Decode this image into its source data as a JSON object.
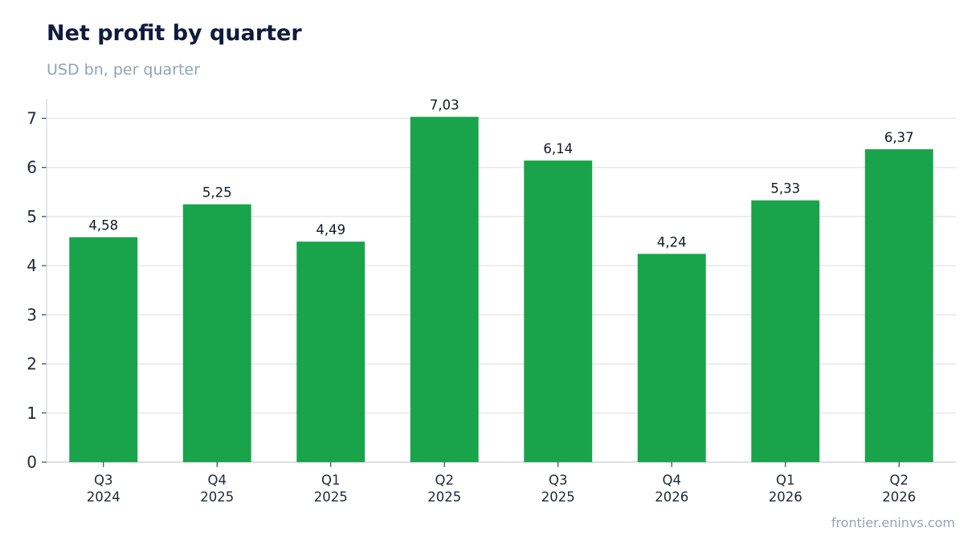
{
  "chart_data": {
    "type": "bar",
    "title": "Net profit by quarter",
    "subtitle": "USD bn, per quarter",
    "categories": [
      [
        "Q3",
        "2024"
      ],
      [
        "Q4",
        "2025"
      ],
      [
        "Q1",
        "2025"
      ],
      [
        "Q2",
        "2025"
      ],
      [
        "Q3",
        "2025"
      ],
      [
        "Q4",
        "2026"
      ],
      [
        "Q1",
        "2026"
      ],
      [
        "Q2",
        "2026"
      ]
    ],
    "values": [
      4.58,
      5.25,
      4.49,
      7.03,
      6.14,
      4.24,
      5.33,
      6.37
    ],
    "value_labels": [
      "4,58",
      "5,25",
      "4,49",
      "7,03",
      "6,14",
      "4,24",
      "5,33",
      "6,37"
    ],
    "yticks": [
      0,
      1,
      2,
      3,
      4,
      5,
      6,
      7
    ],
    "ylim": [
      0,
      7.4
    ],
    "xlabel": "",
    "ylabel": "",
    "grid": true,
    "colors": {
      "bar": "#19a34a",
      "grid": "#e5e7eb",
      "axis": "#d1d5db",
      "title": "#0f1b3d",
      "muted": "#94a3b8"
    }
  },
  "source": "frontier.eninvs.com"
}
